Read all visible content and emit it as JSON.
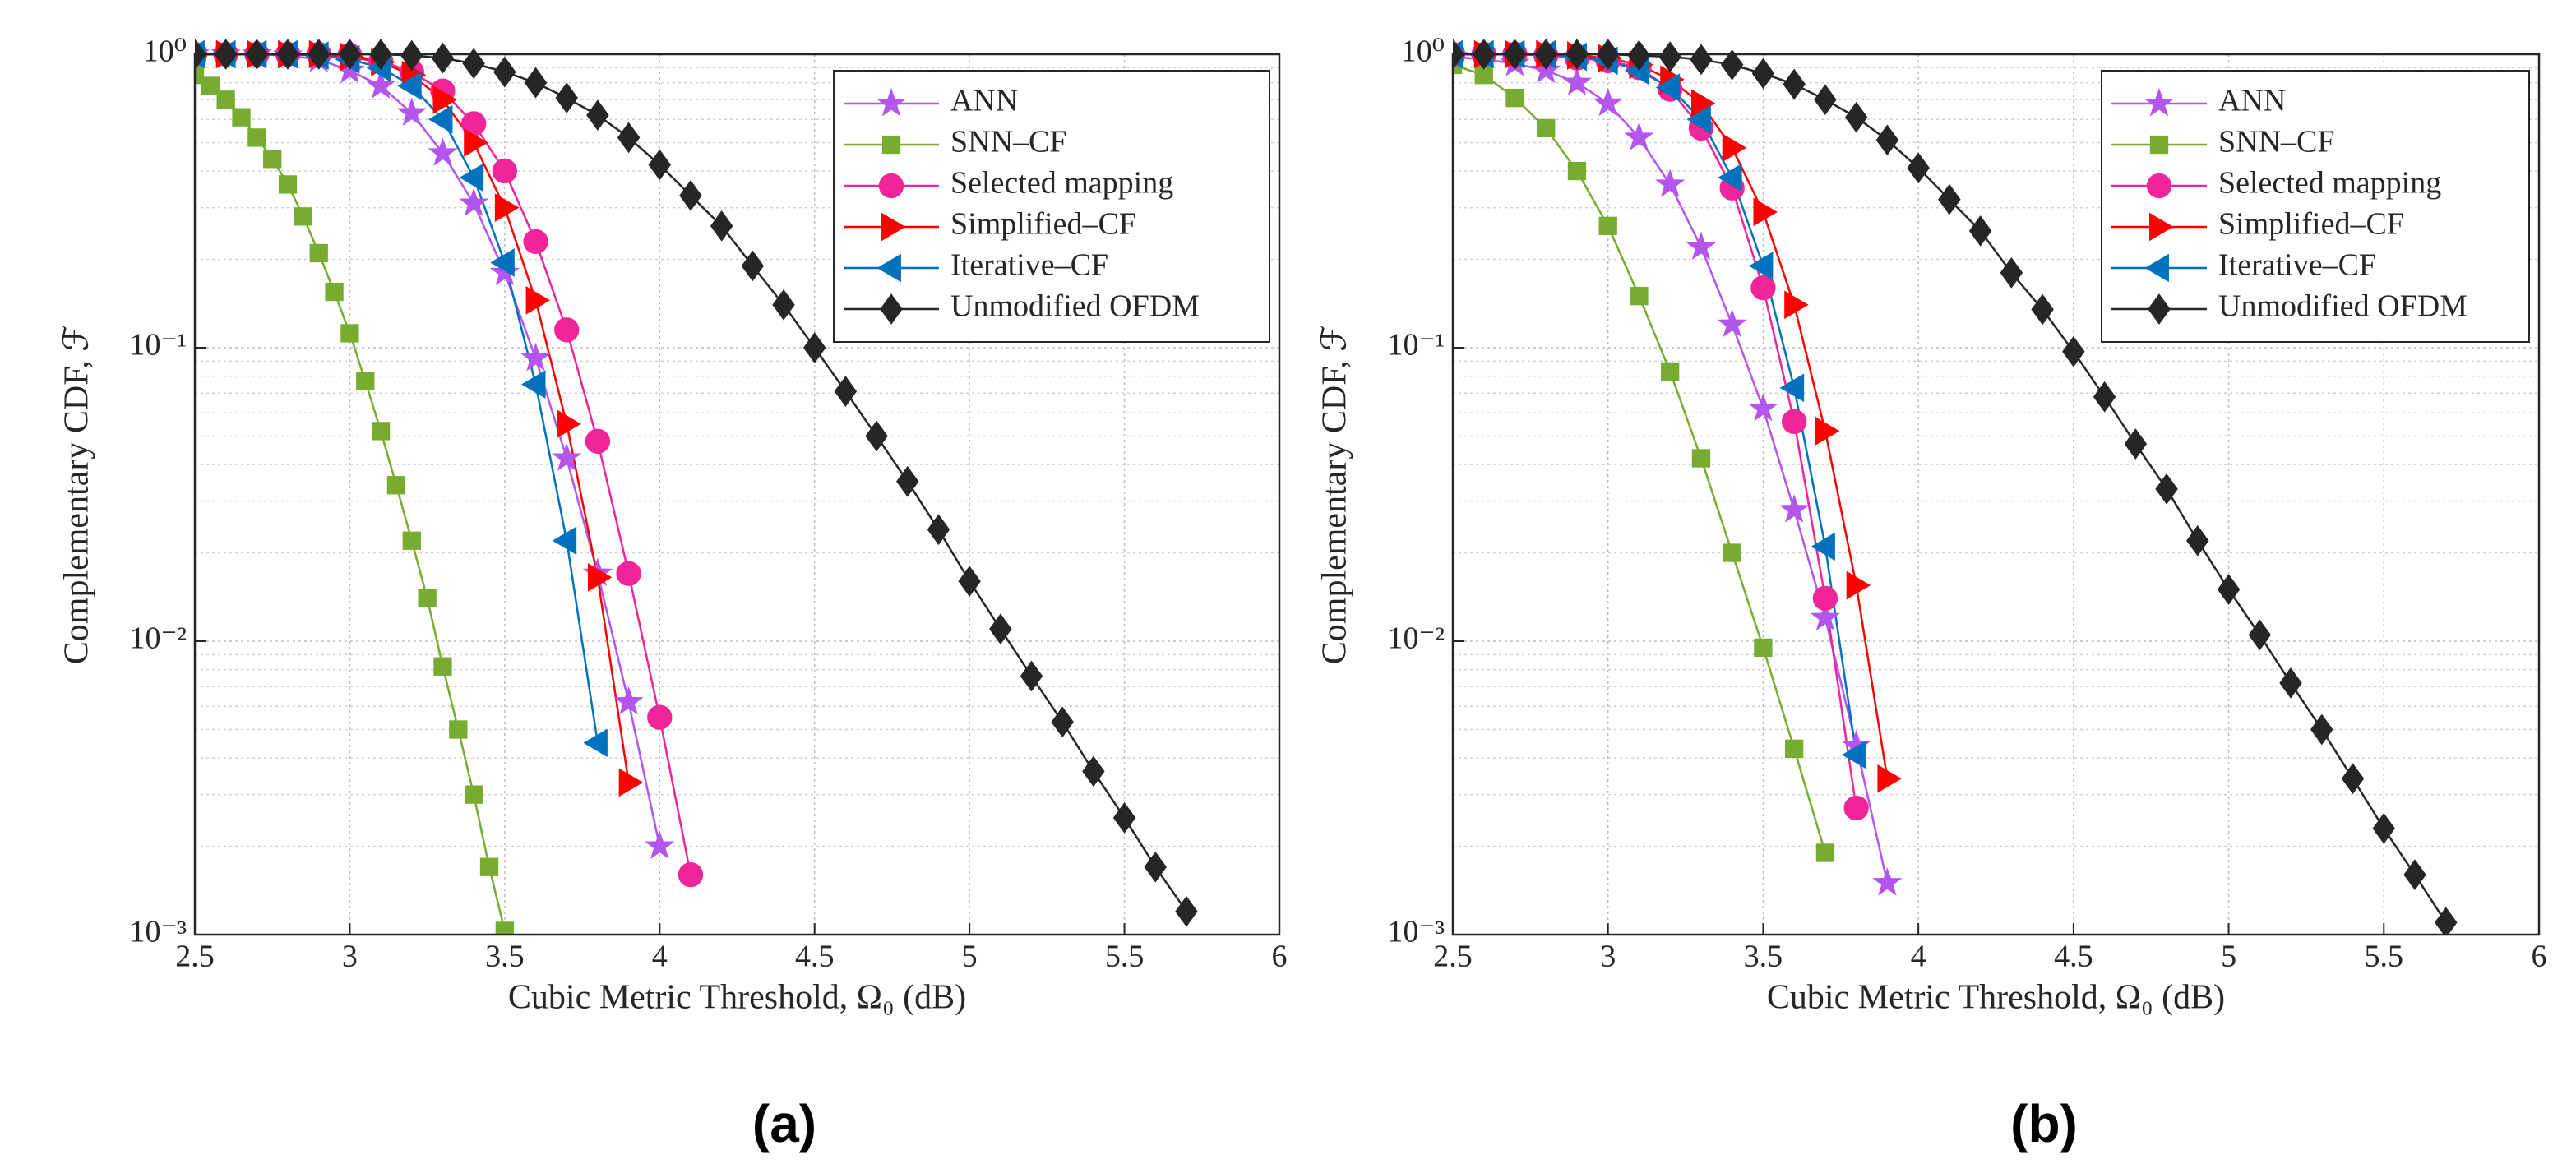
{
  "chart_data": [
    {
      "type": "line",
      "caption": "(a)",
      "xlabel": "Cubic Metric Threshold, Ω₀ (dB)",
      "ylabel": "Complementary CDF, ℱ",
      "log_y": true,
      "grid": true,
      "legend": "upper right",
      "xlim": [
        2.5,
        6
      ],
      "xticks": [
        2.5,
        3,
        3.5,
        4,
        4.5,
        5,
        5.5,
        6
      ],
      "ylim": [
        0.001,
        1
      ],
      "yticks": [
        {
          "value": 0.001,
          "label": "10⁻³"
        },
        {
          "value": 0.01,
          "label": "10⁻²"
        },
        {
          "value": 0.1,
          "label": "10⁻¹"
        },
        {
          "value": 1,
          "label": "10⁰"
        }
      ],
      "series": [
        {
          "name": "ANN",
          "color": "#b455ee",
          "marker": "star",
          "x": [
            2.5,
            2.6,
            2.7,
            2.8,
            2.9,
            3.0,
            3.1,
            3.2,
            3.3,
            3.4,
            3.5,
            3.6,
            3.7,
            3.8,
            3.9,
            4.0
          ],
          "values": [
            1,
            1,
            1,
            0.99,
            0.96,
            0.88,
            0.78,
            0.63,
            0.46,
            0.31,
            0.18,
            0.092,
            0.042,
            0.017,
            0.0062,
            0.002
          ]
        },
        {
          "name": "SNN–CF",
          "color": "#77ac30",
          "marker": "square",
          "x": [
            2.5,
            2.55,
            2.6,
            2.65,
            2.7,
            2.75,
            2.8,
            2.85,
            2.9,
            2.95,
            3.0,
            3.05,
            3.1,
            3.15,
            3.2,
            3.25,
            3.3,
            3.35,
            3.4,
            3.45,
            3.5
          ],
          "values": [
            0.85,
            0.78,
            0.7,
            0.61,
            0.52,
            0.44,
            0.36,
            0.28,
            0.21,
            0.155,
            0.112,
            0.077,
            0.052,
            0.034,
            0.022,
            0.014,
            0.0082,
            0.005,
            0.003,
            0.0017,
            0.00103
          ]
        },
        {
          "name": "Selected mapping",
          "color": "#f0259a",
          "marker": "circle",
          "x": [
            2.5,
            2.6,
            2.7,
            2.8,
            2.9,
            3.0,
            3.1,
            3.2,
            3.3,
            3.4,
            3.5,
            3.6,
            3.7,
            3.8,
            3.9,
            4.0,
            4.1
          ],
          "values": [
            1,
            1,
            1,
            1,
            1,
            0.99,
            0.95,
            0.87,
            0.75,
            0.58,
            0.4,
            0.23,
            0.115,
            0.048,
            0.017,
            0.0055,
            0.0016
          ]
        },
        {
          "name": "Simplified–CF",
          "color": "#ff0000",
          "marker": "right",
          "x": [
            2.5,
            2.6,
            2.7,
            2.8,
            2.9,
            3.0,
            3.1,
            3.2,
            3.3,
            3.4,
            3.5,
            3.6,
            3.7,
            3.8,
            3.9
          ],
          "values": [
            1,
            1,
            1,
            1,
            1,
            0.98,
            0.94,
            0.85,
            0.7,
            0.5,
            0.3,
            0.145,
            0.055,
            0.0165,
            0.0033
          ]
        },
        {
          "name": "Iterative–CF",
          "color": "#0072bd",
          "marker": "left",
          "x": [
            2.5,
            2.6,
            2.7,
            2.8,
            2.9,
            3.0,
            3.1,
            3.2,
            3.3,
            3.4,
            3.5,
            3.6,
            3.7,
            3.8
          ],
          "values": [
            1,
            1,
            1,
            1,
            0.99,
            0.96,
            0.9,
            0.78,
            0.6,
            0.38,
            0.195,
            0.075,
            0.022,
            0.0045
          ]
        },
        {
          "name": "Unmodified OFDM",
          "color": "#262626",
          "marker": "diamond",
          "x": [
            2.5,
            2.6,
            2.7,
            2.8,
            2.9,
            3.0,
            3.1,
            3.2,
            3.3,
            3.4,
            3.5,
            3.6,
            3.7,
            3.8,
            3.9,
            4.0,
            4.1,
            4.2,
            4.3,
            4.4,
            4.5,
            4.6,
            4.7,
            4.8,
            4.9,
            5.0,
            5.1,
            5.2,
            5.3,
            5.4,
            5.5,
            5.6,
            5.7
          ],
          "values": [
            1,
            1,
            1,
            1,
            1,
            1,
            1,
            0.99,
            0.97,
            0.93,
            0.87,
            0.8,
            0.71,
            0.62,
            0.52,
            0.42,
            0.33,
            0.26,
            0.19,
            0.14,
            0.1,
            0.071,
            0.05,
            0.035,
            0.024,
            0.016,
            0.011,
            0.0076,
            0.0053,
            0.0036,
            0.0025,
            0.0017,
            0.0012
          ]
        }
      ]
    },
    {
      "type": "line",
      "caption": "(b)",
      "xlabel": "Cubic Metric Threshold, Ω₀ (dB)",
      "ylabel": "Complementary CDF, ℱ",
      "log_y": true,
      "grid": true,
      "legend": "upper right",
      "xlim": [
        2.5,
        6
      ],
      "xticks": [
        2.5,
        3,
        3.5,
        4,
        4.5,
        5,
        5.5,
        6
      ],
      "ylim": [
        0.001,
        1
      ],
      "yticks": [
        {
          "value": 0.001,
          "label": "10⁻³"
        },
        {
          "value": 0.01,
          "label": "10⁻²"
        },
        {
          "value": 0.1,
          "label": "10⁻¹"
        },
        {
          "value": 1,
          "label": "10⁰"
        }
      ],
      "series": [
        {
          "name": "ANN",
          "color": "#b455ee",
          "marker": "star",
          "x": [
            2.5,
            2.6,
            2.7,
            2.8,
            2.9,
            3.0,
            3.1,
            3.2,
            3.3,
            3.4,
            3.5,
            3.6,
            3.7,
            3.8,
            3.9
          ],
          "values": [
            0.98,
            0.96,
            0.93,
            0.88,
            0.8,
            0.68,
            0.52,
            0.36,
            0.22,
            0.12,
            0.062,
            0.028,
            0.012,
            0.0044,
            0.0015
          ]
        },
        {
          "name": "SNN–CF",
          "color": "#77ac30",
          "marker": "square",
          "x": [
            2.5,
            2.6,
            2.7,
            2.8,
            2.9,
            3.0,
            3.1,
            3.2,
            3.3,
            3.4,
            3.5,
            3.6,
            3.7
          ],
          "values": [
            0.92,
            0.85,
            0.71,
            0.56,
            0.4,
            0.26,
            0.15,
            0.083,
            0.042,
            0.02,
            0.0095,
            0.0043,
            0.0019
          ]
        },
        {
          "name": "Selected mapping",
          "color": "#f0259a",
          "marker": "circle",
          "x": [
            2.5,
            2.6,
            2.7,
            2.8,
            2.9,
            3.0,
            3.1,
            3.2,
            3.3,
            3.4,
            3.5,
            3.6,
            3.7,
            3.8
          ],
          "values": [
            1,
            1,
            1,
            0.99,
            0.97,
            0.95,
            0.9,
            0.76,
            0.56,
            0.35,
            0.16,
            0.056,
            0.014,
            0.0027
          ]
        },
        {
          "name": "Simplified–CF",
          "color": "#ff0000",
          "marker": "right",
          "x": [
            2.5,
            2.6,
            2.7,
            2.8,
            2.9,
            3.0,
            3.1,
            3.2,
            3.3,
            3.4,
            3.5,
            3.6,
            3.7,
            3.8,
            3.9
          ],
          "values": [
            1,
            1,
            1,
            1,
            0.99,
            0.97,
            0.92,
            0.82,
            0.68,
            0.48,
            0.29,
            0.14,
            0.052,
            0.0155,
            0.0034
          ]
        },
        {
          "name": "Iterative–CF",
          "color": "#0072bd",
          "marker": "left",
          "x": [
            2.5,
            2.6,
            2.7,
            2.8,
            2.9,
            3.0,
            3.1,
            3.2,
            3.3,
            3.4,
            3.5,
            3.6,
            3.7,
            3.8
          ],
          "values": [
            1,
            1,
            1,
            1,
            0.98,
            0.95,
            0.88,
            0.77,
            0.6,
            0.38,
            0.19,
            0.073,
            0.021,
            0.0041
          ]
        },
        {
          "name": "Unmodified OFDM",
          "color": "#262626",
          "marker": "diamond",
          "x": [
            2.5,
            2.6,
            2.7,
            2.8,
            2.9,
            3.0,
            3.1,
            3.2,
            3.3,
            3.4,
            3.5,
            3.6,
            3.7,
            3.8,
            3.9,
            4.0,
            4.1,
            4.2,
            4.3,
            4.4,
            4.5,
            4.6,
            4.7,
            4.8,
            4.9,
            5.0,
            5.1,
            5.2,
            5.3,
            5.4,
            5.5,
            5.6,
            5.7
          ],
          "values": [
            1,
            1,
            1,
            1,
            1,
            1,
            0.99,
            0.98,
            0.96,
            0.92,
            0.86,
            0.79,
            0.7,
            0.61,
            0.51,
            0.41,
            0.32,
            0.25,
            0.18,
            0.135,
            0.097,
            0.068,
            0.047,
            0.033,
            0.022,
            0.015,
            0.0105,
            0.0072,
            0.005,
            0.0034,
            0.0023,
            0.0016,
            0.0011
          ]
        }
      ]
    }
  ]
}
